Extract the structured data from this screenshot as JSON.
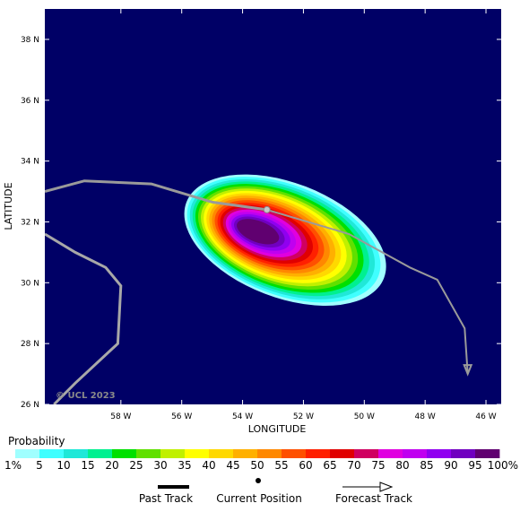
{
  "map": {
    "xlabel": "LONGITUDE",
    "ylabel": "LATITUDE",
    "copyright": "© UCL 2023",
    "background_color": "#000066",
    "lon_range": [
      -60.5,
      -45.5
    ],
    "lat_range": [
      26,
      39
    ],
    "lon_ticks": [
      {
        "value": -58,
        "label": "58 W"
      },
      {
        "value": -56,
        "label": "56 W"
      },
      {
        "value": -54,
        "label": "54 W"
      },
      {
        "value": -52,
        "label": "52 W"
      },
      {
        "value": -50,
        "label": "50 W"
      },
      {
        "value": -48,
        "label": "48 W"
      },
      {
        "value": -46,
        "label": "46 W"
      }
    ],
    "lat_ticks": [
      {
        "value": 26,
        "label": "26 N"
      },
      {
        "value": 28,
        "label": "28 N"
      },
      {
        "value": 30,
        "label": "30 N"
      },
      {
        "value": 32,
        "label": "32 N"
      },
      {
        "value": 34,
        "label": "34 N"
      },
      {
        "value": 36,
        "label": "36 N"
      },
      {
        "value": 38,
        "label": "38 N"
      }
    ],
    "past_track": [
      [
        -60.5,
        33.0
      ],
      [
        -59.2,
        33.35
      ],
      [
        -57.0,
        33.25
      ],
      [
        -55.0,
        32.65
      ],
      [
        -53.2,
        32.4
      ]
    ],
    "current_position": [
      -53.2,
      32.4
    ],
    "forecast_track": [
      [
        -53.2,
        32.4
      ],
      [
        -50.5,
        31.6
      ],
      [
        -48.5,
        30.5
      ],
      [
        -47.6,
        30.1
      ],
      [
        -46.7,
        28.5
      ],
      [
        -46.6,
        27.0
      ]
    ],
    "other_track": [
      [
        -60.5,
        31.6
      ],
      [
        -59.5,
        31.0
      ],
      [
        -58.5,
        30.5
      ],
      [
        -58.0,
        29.9
      ],
      [
        -58.1,
        28.0
      ],
      [
        -59.5,
        26.7
      ],
      [
        -60.2,
        26.0
      ]
    ],
    "probability_center": [
      -52.6,
      31.4
    ],
    "probability_max_percent": 100
  },
  "colorbar": {
    "title": "Probability",
    "labels": [
      "1%",
      "5",
      "10",
      "15",
      "20",
      "25",
      "30",
      "35",
      "40",
      "45",
      "50",
      "55",
      "60",
      "65",
      "70",
      "75",
      "80",
      "85",
      "90",
      "95",
      "100%"
    ],
    "colors": [
      "#a0ffff",
      "#40ffff",
      "#20e8d8",
      "#00f090",
      "#00e000",
      "#60e000",
      "#c0f000",
      "#ffff00",
      "#ffd800",
      "#ffb000",
      "#ff8800",
      "#ff5000",
      "#ff2000",
      "#e00000",
      "#d00060",
      "#e000e0",
      "#c000f0",
      "#9000f0",
      "#7000c0",
      "#600070"
    ]
  },
  "legend": {
    "past_track": "Past Track",
    "current_position": "Current Position",
    "forecast_track": "Forecast Track"
  }
}
